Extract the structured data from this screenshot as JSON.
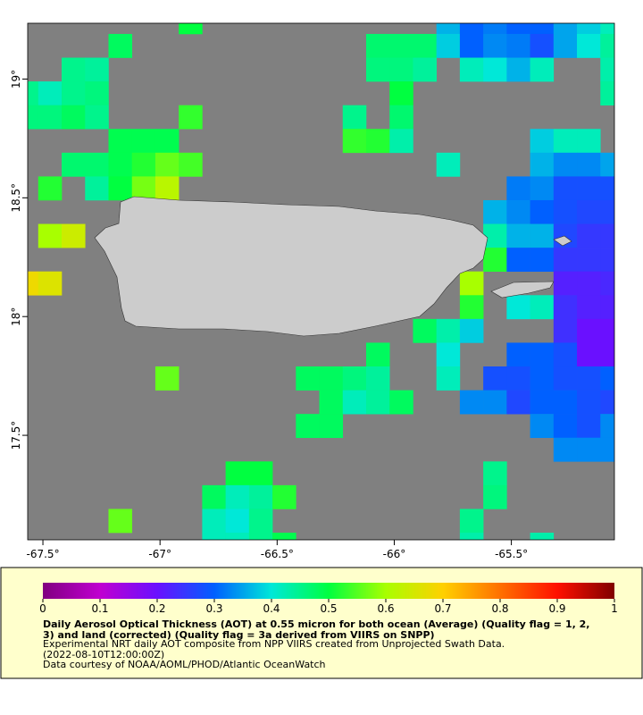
{
  "map": {
    "xlim": [
      -67.565,
      -65.06
    ],
    "ylim": [
      17.06,
      19.235
    ],
    "xticks": [
      {
        "value": -67.5,
        "label": "-67.5°"
      },
      {
        "value": -67,
        "label": "-67°"
      },
      {
        "value": -66.5,
        "label": "-66.5°"
      },
      {
        "value": -66,
        "label": "-66°"
      },
      {
        "value": -65.5,
        "label": "-65.5°"
      }
    ],
    "yticks": [
      {
        "value": 19,
        "label": "19°"
      },
      {
        "value": 18.5,
        "label": "18.5°"
      },
      {
        "value": 18,
        "label": "18°"
      },
      {
        "value": 17.5,
        "label": "17.5°"
      }
    ],
    "cells": [
      [
        -66.87,
        19.24,
        0.5
      ],
      [
        -65.77,
        19.24,
        0.36
      ],
      [
        -65.67,
        19.24,
        0.3
      ],
      [
        -65.57,
        19.24,
        0.32
      ],
      [
        -65.47,
        19.24,
        0.3
      ],
      [
        -65.37,
        19.24,
        0.3
      ],
      [
        -65.27,
        19.24,
        0.35
      ],
      [
        -65.17,
        19.24,
        0.38
      ],
      [
        -65.07,
        19.24,
        0.42
      ],
      [
        -67.17,
        19.14,
        0.48
      ],
      [
        -66.07,
        19.14,
        0.47
      ],
      [
        -65.97,
        19.14,
        0.47
      ],
      [
        -65.87,
        19.14,
        0.47
      ],
      [
        -65.77,
        19.14,
        0.38
      ],
      [
        -65.67,
        19.14,
        0.3
      ],
      [
        -65.57,
        19.14,
        0.33
      ],
      [
        -65.47,
        19.14,
        0.32
      ],
      [
        -65.37,
        19.14,
        0.28
      ],
      [
        -65.27,
        19.14,
        0.35
      ],
      [
        -65.17,
        19.14,
        0.4
      ],
      [
        -65.07,
        19.14,
        0.44
      ],
      [
        -67.37,
        19.04,
        0.45
      ],
      [
        -67.27,
        19.04,
        0.44
      ],
      [
        -66.07,
        19.04,
        0.46
      ],
      [
        -65.97,
        19.04,
        0.46
      ],
      [
        -65.87,
        19.04,
        0.44
      ],
      [
        -65.67,
        19.04,
        0.42
      ],
      [
        -65.57,
        19.04,
        0.4
      ],
      [
        -65.47,
        19.04,
        0.36
      ],
      [
        -65.37,
        19.04,
        0.42
      ],
      [
        -65.07,
        19.04,
        0.43
      ],
      [
        -67.57,
        18.94,
        0.45
      ],
      [
        -67.47,
        18.94,
        0.42
      ],
      [
        -67.37,
        18.94,
        0.45
      ],
      [
        -67.27,
        18.94,
        0.46
      ],
      [
        -65.97,
        18.94,
        0.5
      ],
      [
        -65.07,
        18.94,
        0.44
      ],
      [
        -67.57,
        18.84,
        0.46
      ],
      [
        -67.47,
        18.84,
        0.46
      ],
      [
        -67.37,
        18.84,
        0.48
      ],
      [
        -67.27,
        18.84,
        0.45
      ],
      [
        -66.87,
        18.84,
        0.53
      ],
      [
        -66.17,
        18.84,
        0.45
      ],
      [
        -65.97,
        18.84,
        0.47
      ],
      [
        -67.17,
        18.74,
        0.49
      ],
      [
        -67.07,
        18.74,
        0.49
      ],
      [
        -66.97,
        18.74,
        0.49
      ],
      [
        -66.17,
        18.74,
        0.53
      ],
      [
        -66.07,
        18.74,
        0.52
      ],
      [
        -65.97,
        18.74,
        0.43
      ],
      [
        -65.37,
        18.74,
        0.38
      ],
      [
        -65.27,
        18.74,
        0.42
      ],
      [
        -65.17,
        18.74,
        0.42
      ],
      [
        -67.37,
        18.64,
        0.47
      ],
      [
        -67.27,
        18.64,
        0.47
      ],
      [
        -67.17,
        18.64,
        0.49
      ],
      [
        -67.07,
        18.64,
        0.52
      ],
      [
        -66.97,
        18.64,
        0.56
      ],
      [
        -66.87,
        18.64,
        0.54
      ],
      [
        -65.77,
        18.64,
        0.42
      ],
      [
        -65.37,
        18.64,
        0.36
      ],
      [
        -65.27,
        18.64,
        0.33
      ],
      [
        -65.17,
        18.64,
        0.33
      ],
      [
        -65.07,
        18.64,
        0.35
      ],
      [
        -67.47,
        18.54,
        0.52
      ],
      [
        -67.27,
        18.54,
        0.44
      ],
      [
        -67.17,
        18.54,
        0.5
      ],
      [
        -67.07,
        18.54,
        0.57
      ],
      [
        -66.97,
        18.54,
        0.62
      ],
      [
        -65.47,
        18.54,
        0.32
      ],
      [
        -65.37,
        18.54,
        0.33
      ],
      [
        -65.27,
        18.54,
        0.28
      ],
      [
        -65.17,
        18.54,
        0.28
      ],
      [
        -65.07,
        18.54,
        0.28
      ],
      [
        -65.57,
        18.44,
        0.36
      ],
      [
        -65.47,
        18.44,
        0.33
      ],
      [
        -65.37,
        18.44,
        0.3
      ],
      [
        -65.27,
        18.44,
        0.28
      ],
      [
        -65.17,
        18.44,
        0.27
      ],
      [
        -65.07,
        18.44,
        0.27
      ],
      [
        -67.47,
        18.34,
        0.6
      ],
      [
        -67.37,
        18.34,
        0.64
      ],
      [
        -65.57,
        18.34,
        0.43
      ],
      [
        -65.47,
        18.34,
        0.36
      ],
      [
        -65.37,
        18.34,
        0.36
      ],
      [
        -65.27,
        18.34,
        0.27
      ],
      [
        -65.17,
        18.34,
        0.25
      ],
      [
        -65.07,
        18.34,
        0.25
      ],
      [
        -65.57,
        18.24,
        0.52
      ],
      [
        -65.47,
        18.24,
        0.3
      ],
      [
        -65.37,
        18.24,
        0.3
      ],
      [
        -65.27,
        18.24,
        0.25
      ],
      [
        -65.17,
        18.24,
        0.25
      ],
      [
        -65.07,
        18.24,
        0.25
      ],
      [
        -67.57,
        18.14,
        0.68
      ],
      [
        -67.47,
        18.14,
        0.66
      ],
      [
        -65.67,
        18.14,
        0.6
      ],
      [
        -65.27,
        18.14,
        0.22
      ],
      [
        -65.17,
        18.14,
        0.22
      ],
      [
        -65.07,
        18.14,
        0.23
      ],
      [
        -65.67,
        18.04,
        0.52
      ],
      [
        -65.47,
        18.04,
        0.4
      ],
      [
        -65.37,
        18.04,
        0.42
      ],
      [
        -65.27,
        18.04,
        0.24
      ],
      [
        -65.17,
        18.04,
        0.22
      ],
      [
        -65.07,
        18.04,
        0.22
      ],
      [
        -65.87,
        17.94,
        0.48
      ],
      [
        -65.77,
        17.94,
        0.43
      ],
      [
        -65.67,
        17.94,
        0.38
      ],
      [
        -65.27,
        17.94,
        0.24
      ],
      [
        -65.17,
        17.94,
        0.2
      ],
      [
        -65.07,
        17.94,
        0.2
      ],
      [
        -66.07,
        17.84,
        0.48
      ],
      [
        -65.77,
        17.84,
        0.4
      ],
      [
        -65.47,
        17.84,
        0.3
      ],
      [
        -65.37,
        17.84,
        0.3
      ],
      [
        -65.27,
        17.84,
        0.28
      ],
      [
        -65.17,
        17.84,
        0.2
      ],
      [
        -65.07,
        17.84,
        0.2
      ],
      [
        -66.97,
        17.74,
        0.56
      ],
      [
        -66.37,
        17.74,
        0.48
      ],
      [
        -66.27,
        17.74,
        0.48
      ],
      [
        -66.17,
        17.74,
        0.46
      ],
      [
        -66.07,
        17.74,
        0.44
      ],
      [
        -65.77,
        17.74,
        0.42
      ],
      [
        -65.57,
        17.74,
        0.28
      ],
      [
        -65.47,
        17.74,
        0.28
      ],
      [
        -65.37,
        17.74,
        0.3
      ],
      [
        -65.27,
        17.74,
        0.28
      ],
      [
        -65.17,
        17.74,
        0.28
      ],
      [
        -65.07,
        17.74,
        0.3
      ],
      [
        -66.27,
        17.64,
        0.48
      ],
      [
        -66.17,
        17.64,
        0.42
      ],
      [
        -66.07,
        17.64,
        0.44
      ],
      [
        -65.97,
        17.64,
        0.48
      ],
      [
        -65.67,
        17.64,
        0.33
      ],
      [
        -65.57,
        17.64,
        0.33
      ],
      [
        -65.47,
        17.64,
        0.27
      ],
      [
        -65.37,
        17.64,
        0.3
      ],
      [
        -65.27,
        17.64,
        0.3
      ],
      [
        -65.17,
        17.64,
        0.28
      ],
      [
        -65.07,
        17.64,
        0.27
      ],
      [
        -66.37,
        17.54,
        0.48
      ],
      [
        -66.27,
        17.54,
        0.48
      ],
      [
        -65.37,
        17.54,
        0.33
      ],
      [
        -65.27,
        17.54,
        0.3
      ],
      [
        -65.17,
        17.54,
        0.28
      ],
      [
        -65.07,
        17.54,
        0.33
      ],
      [
        -65.27,
        17.44,
        0.33
      ],
      [
        -65.17,
        17.44,
        0.33
      ],
      [
        -65.07,
        17.44,
        0.33
      ],
      [
        -66.67,
        17.34,
        0.5
      ],
      [
        -66.57,
        17.34,
        0.5
      ],
      [
        -65.57,
        17.34,
        0.45
      ],
      [
        -66.77,
        17.24,
        0.48
      ],
      [
        -66.67,
        17.24,
        0.42
      ],
      [
        -66.57,
        17.24,
        0.44
      ],
      [
        -66.47,
        17.24,
        0.52
      ],
      [
        -65.57,
        17.24,
        0.46
      ],
      [
        -67.17,
        17.14,
        0.56
      ],
      [
        -66.77,
        17.14,
        0.42
      ],
      [
        -66.67,
        17.14,
        0.4
      ],
      [
        -66.57,
        17.14,
        0.45
      ],
      [
        -65.67,
        17.14,
        0.45
      ],
      [
        -66.77,
        17.04,
        0.42
      ],
      [
        -66.67,
        17.04,
        0.42
      ],
      [
        -66.57,
        17.04,
        0.45
      ],
      [
        -66.47,
        17.04,
        0.49
      ],
      [
        -65.67,
        17.04,
        0.43
      ],
      [
        -65.37,
        17.04,
        0.43
      ]
    ],
    "colorbar": {
      "lim": [
        0,
        1
      ],
      "ticks": [
        0,
        0.1,
        0.2,
        0.3,
        0.4,
        0.5,
        0.6,
        0.7,
        0.8,
        0.9,
        1
      ],
      "colors": [
        "#800080",
        "#c000d0",
        "#6a10ff",
        "#0060ff",
        "#00e8d8",
        "#00ff40",
        "#a8ff00",
        "#ffd000",
        "#ff7000",
        "#ff1000",
        "#800000"
      ]
    },
    "caption": {
      "title": "Daily Aerosol Optical Thickness (AOT) at 0.55 micron for both ocean (Average) (Quality flag = 1, 2, 3) and land (corrected) (Quality flag = 3a derived from VIIRS on SNPP)",
      "lines": [
        "Experimental NRT daily AOT composite from NPP VIIRS created from Unprojected Swath Data.",
        "(2022-08-10T12:00:00Z)",
        "Data courtesy of NOAA/AOML/PHOD/Atlantic OceanWatch"
      ]
    }
  }
}
